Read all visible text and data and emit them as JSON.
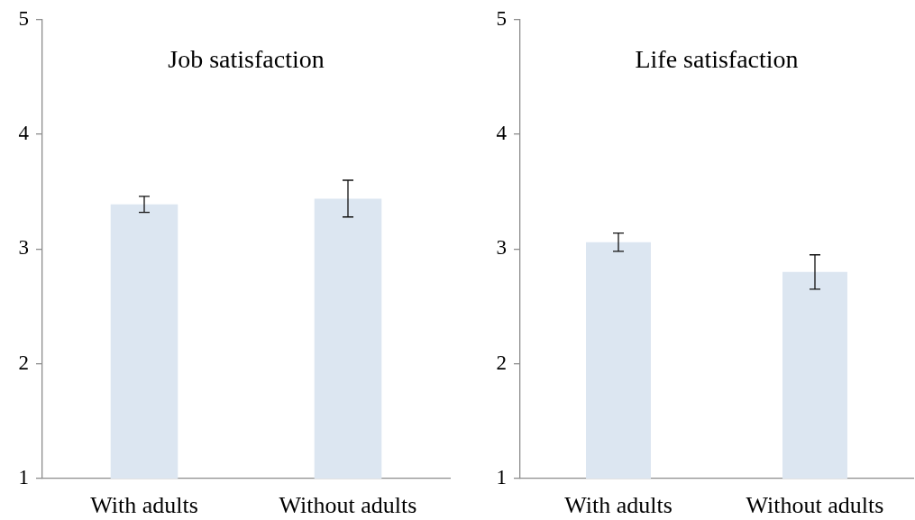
{
  "chart_data": [
    {
      "type": "bar",
      "title": "Job satisfaction",
      "categories": [
        "With adults",
        "Without adults"
      ],
      "values": [
        3.39,
        3.44
      ],
      "errors": [
        0.07,
        0.16
      ],
      "color": "#dce6f1",
      "ylim": [
        1,
        5
      ],
      "yticks": [
        1,
        2,
        3,
        4,
        5
      ]
    },
    {
      "type": "bar",
      "title": "Life satisfaction",
      "categories": [
        "With adults",
        "Without adults"
      ],
      "values": [
        3.06,
        2.8
      ],
      "errors": [
        0.08,
        0.15
      ],
      "color": "#dce6f1",
      "ylim": [
        1,
        5
      ],
      "yticks": [
        1,
        2,
        3,
        4,
        5
      ]
    }
  ]
}
